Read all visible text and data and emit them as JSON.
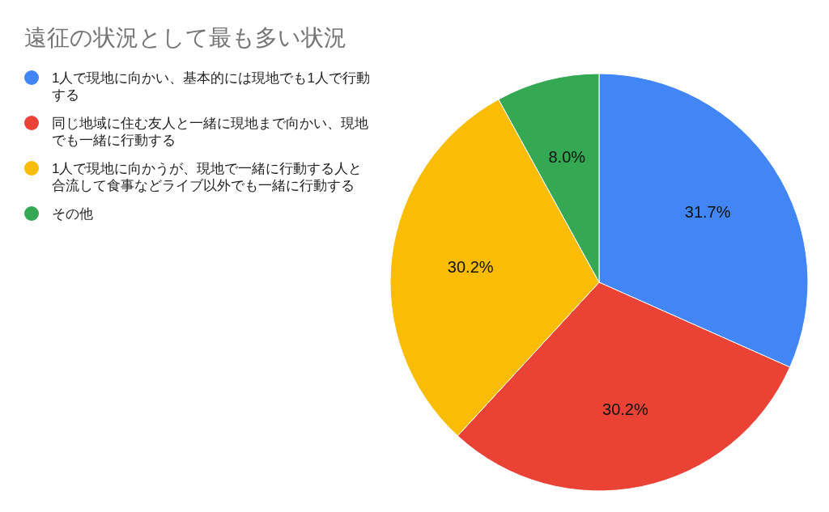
{
  "chart_data": {
    "type": "pie",
    "title": "遠征の状況として最も多い状況",
    "categories": [
      "1人で現地に向かい、基本的には現地でも1人で行動する",
      "同じ地域に住む友人と一緒に現地まで向かい、現地でも一緒に行動する",
      "1人で現地に向かうが、現地で一緒に行動する人と合流して食事などライブ以外でも一緒に行動する",
      "その他"
    ],
    "values": [
      31.7,
      30.2,
      30.2,
      8.0
    ],
    "value_labels": [
      "31.7%",
      "30.2%",
      "30.2%",
      "8.0%"
    ],
    "colors": [
      "#4285f4",
      "#ea4335",
      "#fbbc04",
      "#34a853"
    ],
    "legend": "top left"
  }
}
